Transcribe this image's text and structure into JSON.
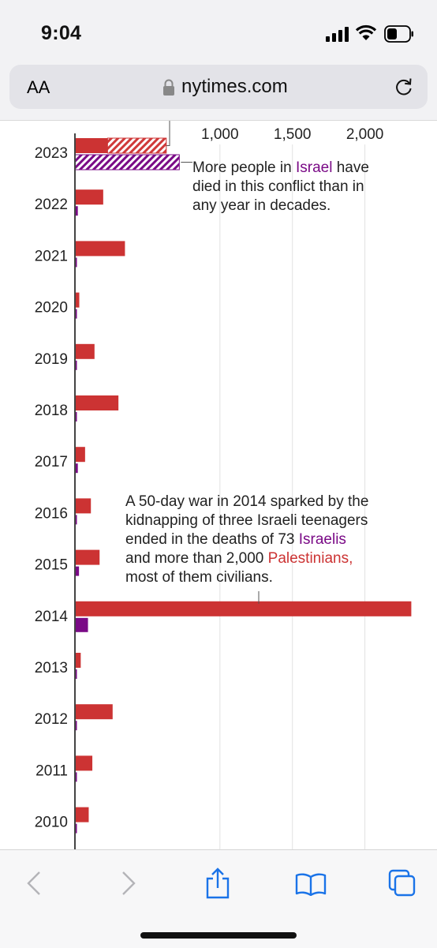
{
  "status": {
    "time": "9:04"
  },
  "browser": {
    "aa_label": "AA",
    "url": "nytimes.com"
  },
  "chart_data": {
    "type": "bar",
    "orientation": "horizontal",
    "xlim": [
      0,
      2350
    ],
    "x_ticks": [
      1000,
      1500,
      2000
    ],
    "x_tick_labels": [
      "1,000",
      "1,500",
      "2,000"
    ],
    "categories": [
      "2023",
      "2022",
      "2021",
      "2020",
      "2019",
      "2018",
      "2017",
      "2016",
      "2015",
      "2014",
      "2013",
      "2012",
      "2011",
      "2010"
    ],
    "series": [
      {
        "name": "Palestinians",
        "color": "#cc3333",
        "values": [
          630,
          195,
          345,
          30,
          135,
          300,
          70,
          110,
          170,
          2320,
          40,
          260,
          120,
          95
        ]
      },
      {
        "name": "Israelis",
        "color": "#7a0a86",
        "values": [
          720,
          20,
          10,
          3,
          10,
          12,
          20,
          12,
          28,
          90,
          5,
          10,
          10,
          10
        ]
      }
    ],
    "partial_2023": {
      "palestinians_confirmed": 225,
      "israelis_confirmed": 0
    },
    "annotations": {
      "a2023": [
        "More people in ",
        "Israel",
        " have",
        "died in this conflict than in",
        "any year in decades."
      ],
      "a2014": [
        "A 50-day war in 2014 sparked by the",
        "kidnapping of three Israeli teenagers",
        "ended in the deaths of 73 ",
        "Israelis",
        "and more than 2,000 ",
        "Palestinians,",
        "most of them civilians."
      ]
    }
  }
}
